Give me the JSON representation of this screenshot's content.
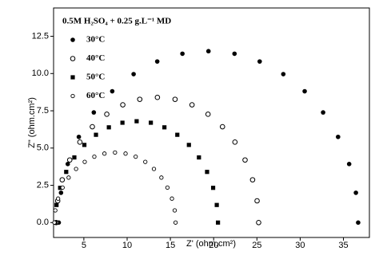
{
  "chart_data": {
    "type": "scatter",
    "annotation": "0.5M H₂SO₄ + 0.25 g.L⁻¹ MD",
    "x_label": "Z' (ohm.cm²)",
    "y_label": "Z\" (ohm.cm²)",
    "xlim": [
      1.5,
      38
    ],
    "ylim": [
      -1,
      14.4
    ],
    "xticks": [
      5,
      10,
      15,
      20,
      25,
      30,
      35
    ],
    "yticks": [
      {
        "value": 0,
        "label": "0.0"
      },
      {
        "value": 2.5,
        "label": "2.5"
      },
      {
        "value": 5,
        "label": "5.0"
      },
      {
        "value": 7.5,
        "label": "7.5"
      },
      {
        "value": 10,
        "label": "10.0"
      },
      {
        "value": 12.5,
        "label": "12.5"
      }
    ],
    "series": [
      {
        "name": "30°C",
        "marker": "filled-circle",
        "color": "#000000",
        "x": [
          2.1,
          2.36,
          3.14,
          4.42,
          6.15,
          8.28,
          10.75,
          13.48,
          16.39,
          19.4,
          22.41,
          25.32,
          28.05,
          30.52,
          32.65,
          34.38,
          35.66,
          36.44,
          36.7
        ],
        "values": [
          0,
          2.0,
          3.93,
          5.75,
          7.39,
          8.81,
          9.96,
          10.81,
          11.33,
          11.5,
          11.33,
          10.81,
          9.96,
          8.81,
          7.39,
          5.75,
          3.93,
          2.0,
          0
        ]
      },
      {
        "name": "40°C",
        "marker": "open-circle",
        "color": "#000000",
        "x": [
          1.8,
          1.98,
          2.5,
          3.37,
          4.54,
          5.98,
          7.65,
          9.5,
          11.46,
          13.5,
          15.54,
          17.5,
          19.35,
          21.02,
          22.46,
          23.63,
          24.5,
          25.02,
          25.2
        ],
        "values": [
          0,
          1.46,
          2.87,
          4.2,
          5.4,
          6.43,
          7.27,
          7.9,
          8.27,
          8.4,
          8.27,
          7.9,
          7.27,
          6.43,
          5.4,
          4.2,
          2.87,
          1.46,
          0
        ]
      },
      {
        "name": "50°C",
        "marker": "filled-square",
        "color": "#000000",
        "x": [
          1.7,
          1.84,
          2.26,
          2.96,
          3.9,
          5.06,
          6.4,
          7.89,
          9.46,
          11.1,
          12.74,
          14.31,
          15.8,
          17.14,
          18.3,
          19.24,
          19.94,
          20.36,
          20.5
        ],
        "values": [
          0,
          1.18,
          2.33,
          3.4,
          4.37,
          5.21,
          5.89,
          6.39,
          6.7,
          6.8,
          6.7,
          6.39,
          5.89,
          5.21,
          4.37,
          3.4,
          2.33,
          1.18,
          0
        ]
      },
      {
        "name": "60°C",
        "marker": "small-open-circle",
        "color": "#000000",
        "x": [
          1.6,
          1.7,
          2.02,
          2.54,
          3.24,
          4.1,
          5.1,
          6.21,
          7.38,
          8.6,
          9.82,
          10.99,
          12.1,
          13.1,
          13.96,
          14.66,
          15.18,
          15.5,
          15.6
        ],
        "values": [
          0,
          0.82,
          1.61,
          2.35,
          3.02,
          3.6,
          4.07,
          4.42,
          4.63,
          4.7,
          4.63,
          4.42,
          4.07,
          3.6,
          3.02,
          2.35,
          1.61,
          0.82,
          0
        ]
      }
    ]
  }
}
